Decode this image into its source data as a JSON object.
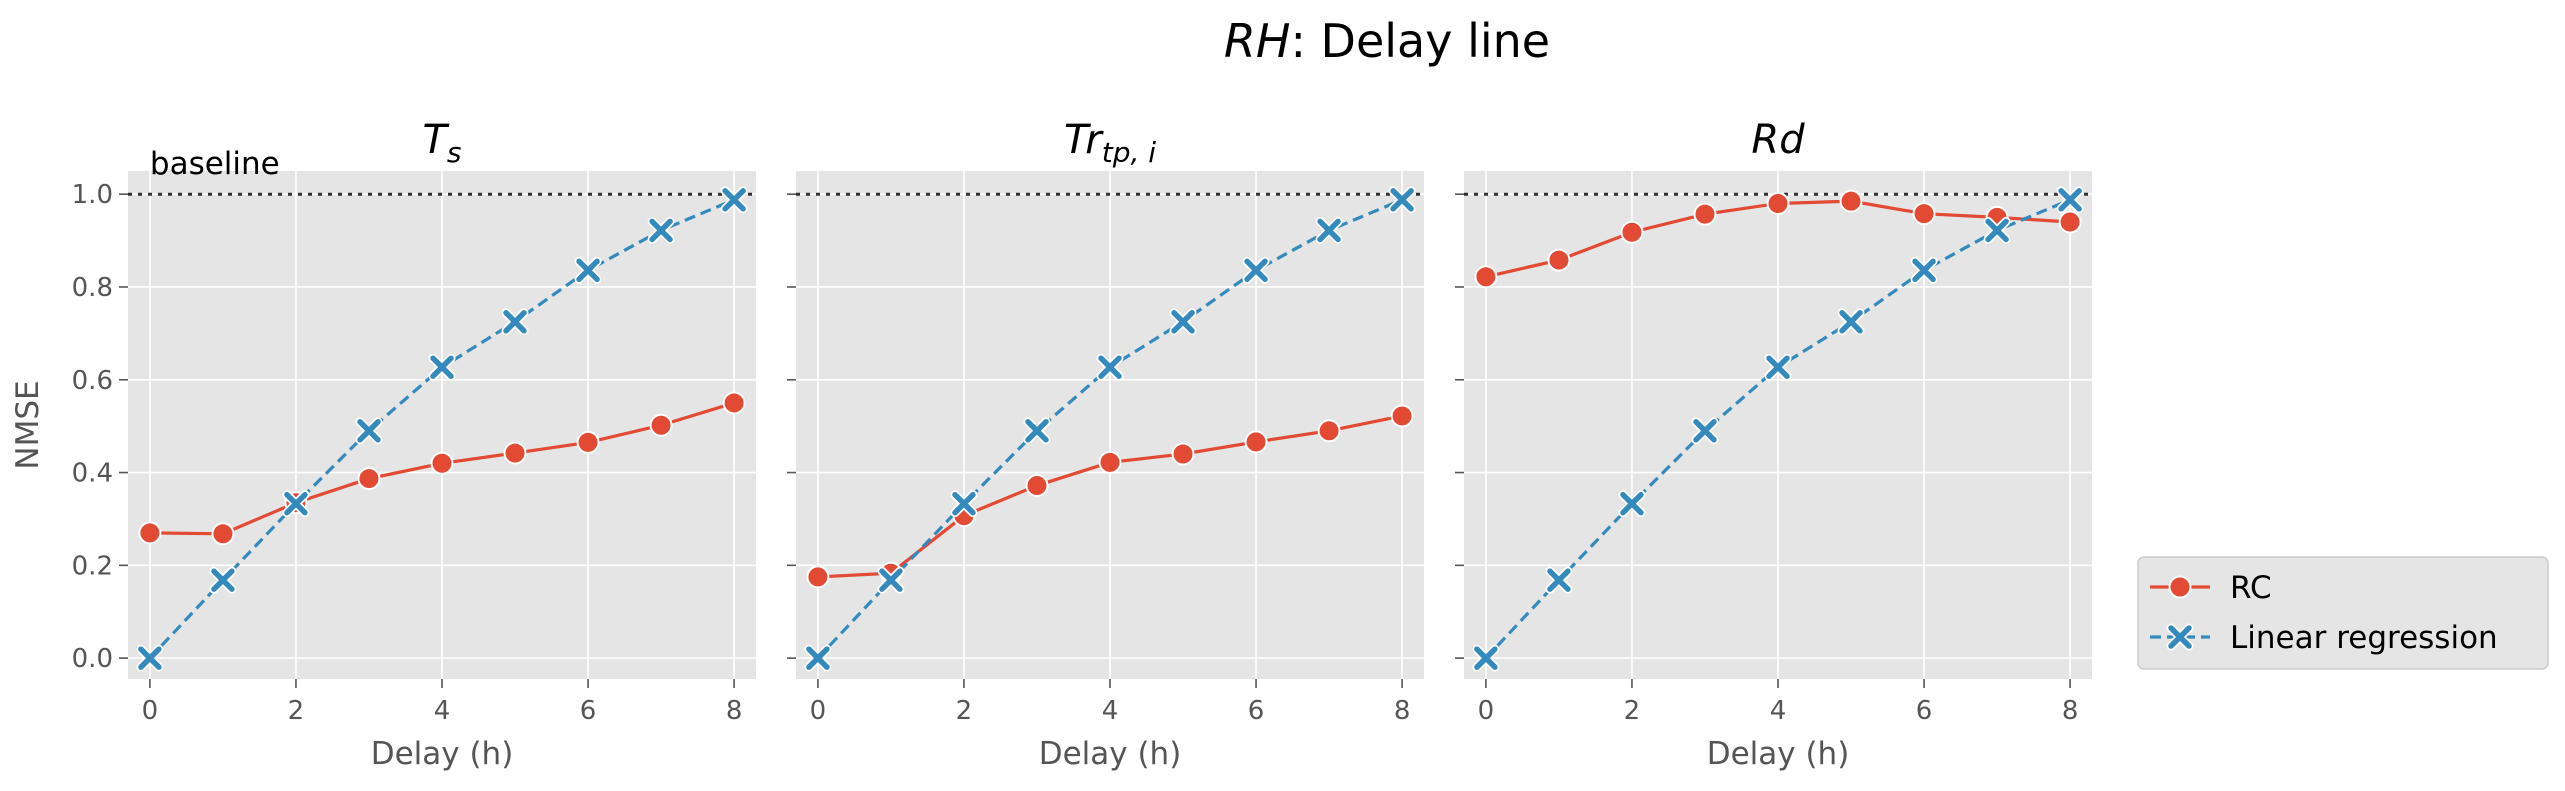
{
  "figure": {
    "title_italic": "RH",
    "title_rest": ": Delay line"
  },
  "chart_data": [
    {
      "type": "line",
      "title": "T_s",
      "title_base": "T",
      "title_sub": "s",
      "xlabel": "Delay (h)",
      "ylabel": "NMSE",
      "x": [
        0,
        1,
        2,
        3,
        4,
        5,
        6,
        7,
        8
      ],
      "xlim": [
        -0.3,
        8.3
      ],
      "ylim": [
        -0.045,
        1.05
      ],
      "xticks": [
        0,
        2,
        4,
        6,
        8
      ],
      "yticks": [
        0.0,
        0.2,
        0.4,
        0.6,
        0.8,
        1.0
      ],
      "xtick_labels": [
        "0",
        "2",
        "4",
        "6",
        "8"
      ],
      "ytick_labels": [
        "0.0",
        "0.2",
        "0.4",
        "0.6",
        "0.8",
        "1.0"
      ],
      "grid": true,
      "baseline": {
        "value": 1.0,
        "label": "baseline"
      },
      "series": [
        {
          "name": "RC",
          "values": [
            0.27,
            0.268,
            0.335,
            0.387,
            0.42,
            0.442,
            0.465,
            0.502,
            0.55
          ]
        },
        {
          "name": "Linear regression",
          "values": [
            0.0,
            0.168,
            0.333,
            0.49,
            0.627,
            0.725,
            0.836,
            0.922,
            0.988
          ]
        }
      ]
    },
    {
      "type": "line",
      "title": "Tr_tp,i",
      "title_base": "Tr",
      "title_sub": "tp, i",
      "xlabel": "Delay (h)",
      "ylabel": "",
      "x": [
        0,
        1,
        2,
        3,
        4,
        5,
        6,
        7,
        8
      ],
      "xlim": [
        -0.3,
        8.3
      ],
      "ylim": [
        -0.045,
        1.05
      ],
      "xticks": [
        0,
        2,
        4,
        6,
        8
      ],
      "yticks": [
        0.0,
        0.2,
        0.4,
        0.6,
        0.8,
        1.0
      ],
      "xtick_labels": [
        "0",
        "2",
        "4",
        "6",
        "8"
      ],
      "grid": true,
      "baseline": {
        "value": 1.0
      },
      "series": [
        {
          "name": "RC",
          "values": [
            0.175,
            0.183,
            0.307,
            0.372,
            0.422,
            0.44,
            0.466,
            0.49,
            0.522
          ]
        },
        {
          "name": "Linear regression",
          "values": [
            0.0,
            0.168,
            0.333,
            0.49,
            0.627,
            0.725,
            0.836,
            0.922,
            0.988
          ]
        }
      ]
    },
    {
      "type": "line",
      "title": "Rd",
      "title_base": "Rd",
      "title_sub": "",
      "xlabel": "Delay (h)",
      "ylabel": "",
      "x": [
        0,
        1,
        2,
        3,
        4,
        5,
        6,
        7,
        8
      ],
      "xlim": [
        -0.3,
        8.3
      ],
      "ylim": [
        -0.045,
        1.05
      ],
      "xticks": [
        0,
        2,
        4,
        6,
        8
      ],
      "yticks": [
        0.0,
        0.2,
        0.4,
        0.6,
        0.8,
        1.0
      ],
      "xtick_labels": [
        "0",
        "2",
        "4",
        "6",
        "8"
      ],
      "grid": true,
      "baseline": {
        "value": 1.0
      },
      "series": [
        {
          "name": "RC",
          "values": [
            0.822,
            0.858,
            0.918,
            0.957,
            0.98,
            0.985,
            0.958,
            0.95,
            0.94
          ]
        },
        {
          "name": "Linear regression",
          "values": [
            0.0,
            0.168,
            0.333,
            0.49,
            0.627,
            0.725,
            0.836,
            0.922,
            0.988
          ]
        }
      ]
    }
  ],
  "legend": {
    "placement": "lower-right outside",
    "items": [
      {
        "label": "RC",
        "color": "#e24a33",
        "marker": "circle",
        "line": "solid"
      },
      {
        "label": "Linear regression",
        "color": "#348abd",
        "marker": "x",
        "line": "dashed"
      }
    ]
  },
  "colors": {
    "panel_bg": "#e5e5e5",
    "grid": "#ffffff",
    "rc": "#e24a33",
    "linear": "#348abd",
    "baseline": "#333333"
  }
}
